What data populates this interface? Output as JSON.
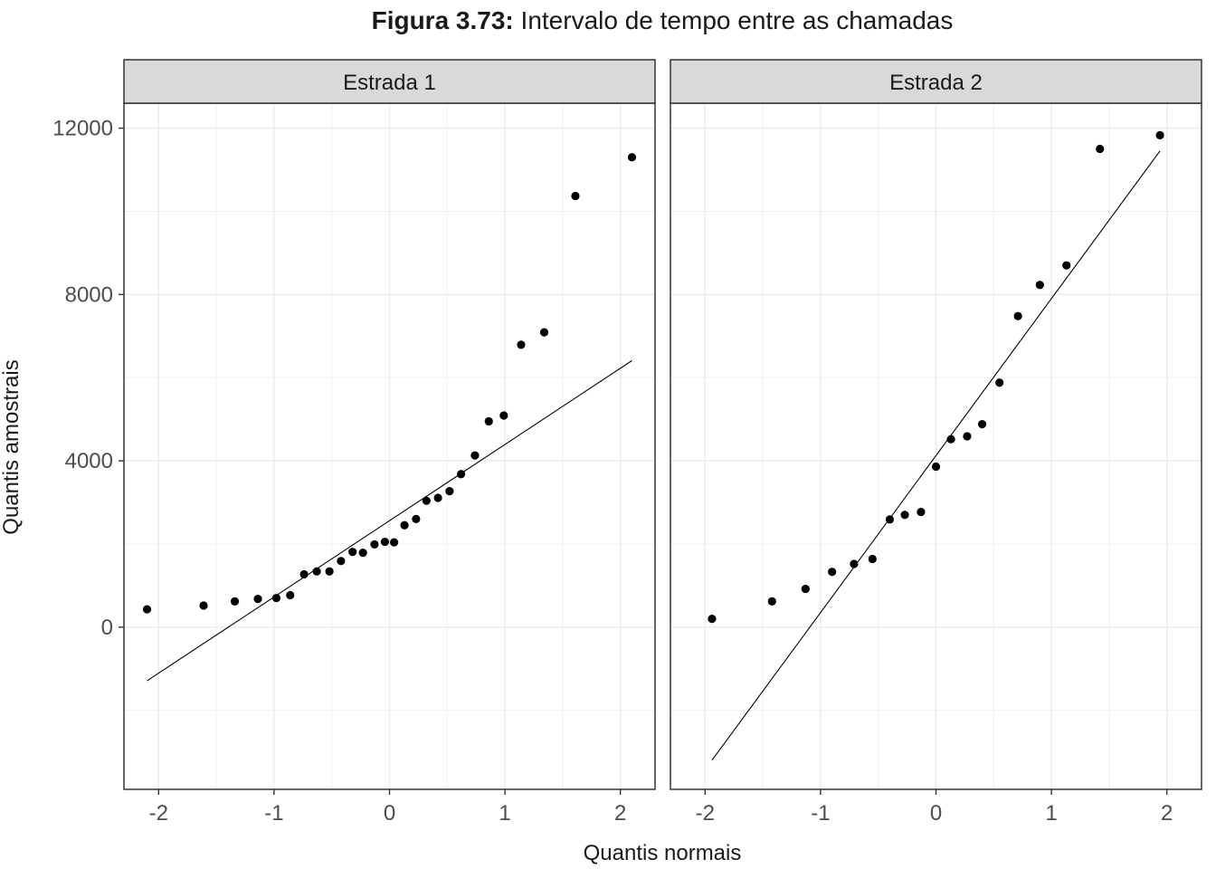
{
  "chart_data": {
    "type": "scatter",
    "title_bold": "Figura 3.73:",
    "title_rest": " Intervalo de tempo entre as chamadas",
    "xlabel": "Quantis normais",
    "ylabel": "Quantis amostrais",
    "xlim": [
      -2.3,
      2.3
    ],
    "ylim": [
      -3900,
      12600
    ],
    "x_ticks": [
      -2,
      -1,
      0,
      1,
      2
    ],
    "x_tick_labels": [
      "-2",
      "-1",
      "0",
      "1",
      "2"
    ],
    "y_ticks": [
      0,
      4000,
      8000,
      12000
    ],
    "y_tick_labels": [
      "0",
      "4000",
      "8000",
      "12000"
    ],
    "grid": true,
    "panels": [
      {
        "strip_label": "Estrada 1",
        "points": [
          [
            -2.1,
            430
          ],
          [
            -1.61,
            520
          ],
          [
            -1.34,
            620
          ],
          [
            -1.14,
            680
          ],
          [
            -0.98,
            700
          ],
          [
            -0.86,
            770
          ],
          [
            -0.74,
            1270
          ],
          [
            -0.63,
            1340
          ],
          [
            -0.52,
            1340
          ],
          [
            -0.42,
            1590
          ],
          [
            -0.32,
            1810
          ],
          [
            -0.23,
            1790
          ],
          [
            -0.13,
            1990
          ],
          [
            -0.04,
            2050
          ],
          [
            0.04,
            2040
          ],
          [
            0.13,
            2450
          ],
          [
            0.23,
            2600
          ],
          [
            0.32,
            3040
          ],
          [
            0.42,
            3110
          ],
          [
            0.52,
            3270
          ],
          [
            0.62,
            3680
          ],
          [
            0.74,
            4130
          ],
          [
            0.86,
            4950
          ],
          [
            0.99,
            5090
          ],
          [
            1.14,
            6790
          ],
          [
            1.34,
            7090
          ],
          [
            1.61,
            10370
          ],
          [
            2.1,
            11300
          ]
        ],
        "line": [
          [
            -2.1,
            -1290
          ],
          [
            2.1,
            6410
          ]
        ]
      },
      {
        "strip_label": "Estrada 2",
        "points": [
          [
            -1.94,
            200
          ],
          [
            -1.42,
            620
          ],
          [
            -1.13,
            920
          ],
          [
            -0.9,
            1330
          ],
          [
            -0.71,
            1520
          ],
          [
            -0.55,
            1640
          ],
          [
            -0.4,
            2590
          ],
          [
            -0.27,
            2700
          ],
          [
            -0.13,
            2770
          ],
          [
            0.0,
            3860
          ],
          [
            0.13,
            4520
          ],
          [
            0.27,
            4590
          ],
          [
            0.4,
            4880
          ],
          [
            0.55,
            5880
          ],
          [
            0.71,
            7480
          ],
          [
            0.9,
            8230
          ],
          [
            1.13,
            8700
          ],
          [
            1.42,
            11500
          ],
          [
            1.94,
            11830
          ]
        ],
        "line": [
          [
            -1.94,
            -3200
          ],
          [
            1.94,
            11450
          ]
        ]
      }
    ]
  }
}
